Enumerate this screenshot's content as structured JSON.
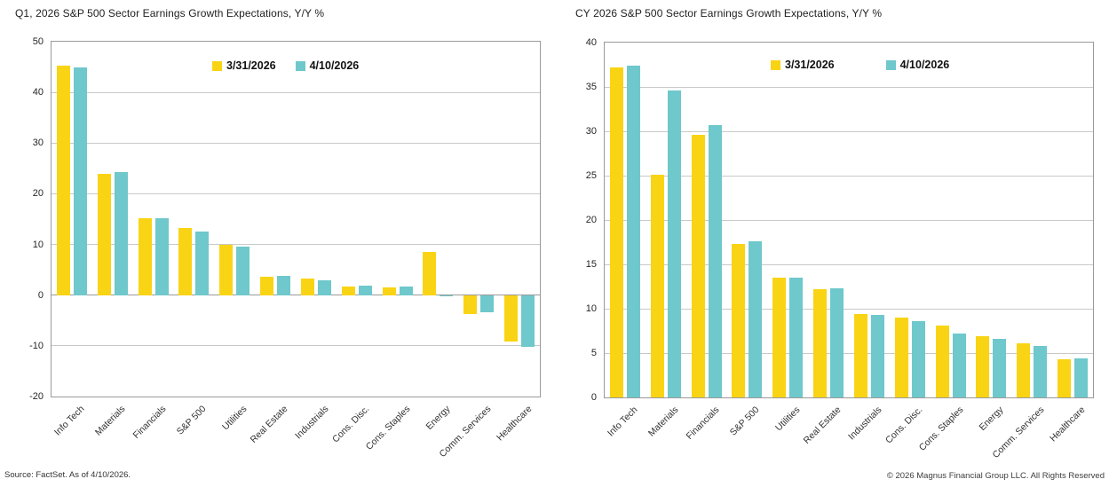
{
  "footer": {
    "source": "Source: FactSet. As of 4/10/2026.",
    "copyright": "© 2026 Magnus Financial Group LLC. All Rights Reserved"
  },
  "colors": {
    "series1": "#F9D414",
    "series2": "#6EC8CC",
    "gridline": "#C9C9C9",
    "zero_line": "#9A9A9A",
    "plot_border": "#9A9A9A",
    "title_text": "#1F1F1F"
  },
  "chart_data": [
    {
      "type": "bar",
      "title": "Q1, 2026 S&P 500 Sector Earnings Growth Expectations, Y/Y %",
      "categories": [
        "Info Tech",
        "Materials",
        "Financials",
        "S&P 500",
        "Utilities",
        "Real Estate",
        "Industrials",
        "Cons. Disc.",
        "Cons. Staples",
        "Energy",
        "Comm. Services",
        "Healthcare"
      ],
      "series": [
        {
          "name": "3/31/2026",
          "color": "#F9D414",
          "values": [
            45.2,
            24.0,
            15.1,
            13.2,
            10.0,
            3.6,
            3.3,
            1.7,
            1.6,
            8.6,
            -3.7,
            -9.2
          ]
        },
        {
          "name": "4/10/2026",
          "color": "#6EC8CC",
          "values": [
            45.0,
            24.2,
            15.1,
            12.6,
            9.6,
            3.8,
            2.9,
            1.8,
            1.7,
            -0.2,
            -3.4,
            -10.2
          ]
        }
      ],
      "ylim": [
        -20,
        50
      ],
      "ytick_step": 10,
      "grid": true,
      "legend_position": "inside-top-right",
      "ylabel": "",
      "xlabel": ""
    },
    {
      "type": "bar",
      "title": "CY 2026 S&P 500 Sector Earnings Growth Expectations, Y/Y %",
      "categories": [
        "Info Tech",
        "Materials",
        "Financials",
        "S&P 500",
        "Utilities",
        "Real Estate",
        "Industrials",
        "Cons. Disc.",
        "Cons. Staples",
        "Energy",
        "Comm. Services",
        "Healthcare"
      ],
      "series": [
        {
          "name": "3/31/2026",
          "color": "#F9D414",
          "values": [
            37.2,
            25.1,
            29.6,
            17.3,
            13.5,
            12.2,
            9.4,
            9.0,
            8.1,
            6.9,
            6.1,
            4.3
          ]
        },
        {
          "name": "4/10/2026",
          "color": "#6EC8CC",
          "values": [
            37.4,
            34.6,
            30.7,
            17.6,
            13.5,
            12.3,
            9.3,
            8.6,
            7.2,
            6.6,
            5.8,
            4.4
          ]
        }
      ],
      "ylim": [
        0,
        40
      ],
      "ytick_step": 5,
      "grid": true,
      "legend_position": "inside-top-right",
      "ylabel": "",
      "xlabel": ""
    }
  ]
}
